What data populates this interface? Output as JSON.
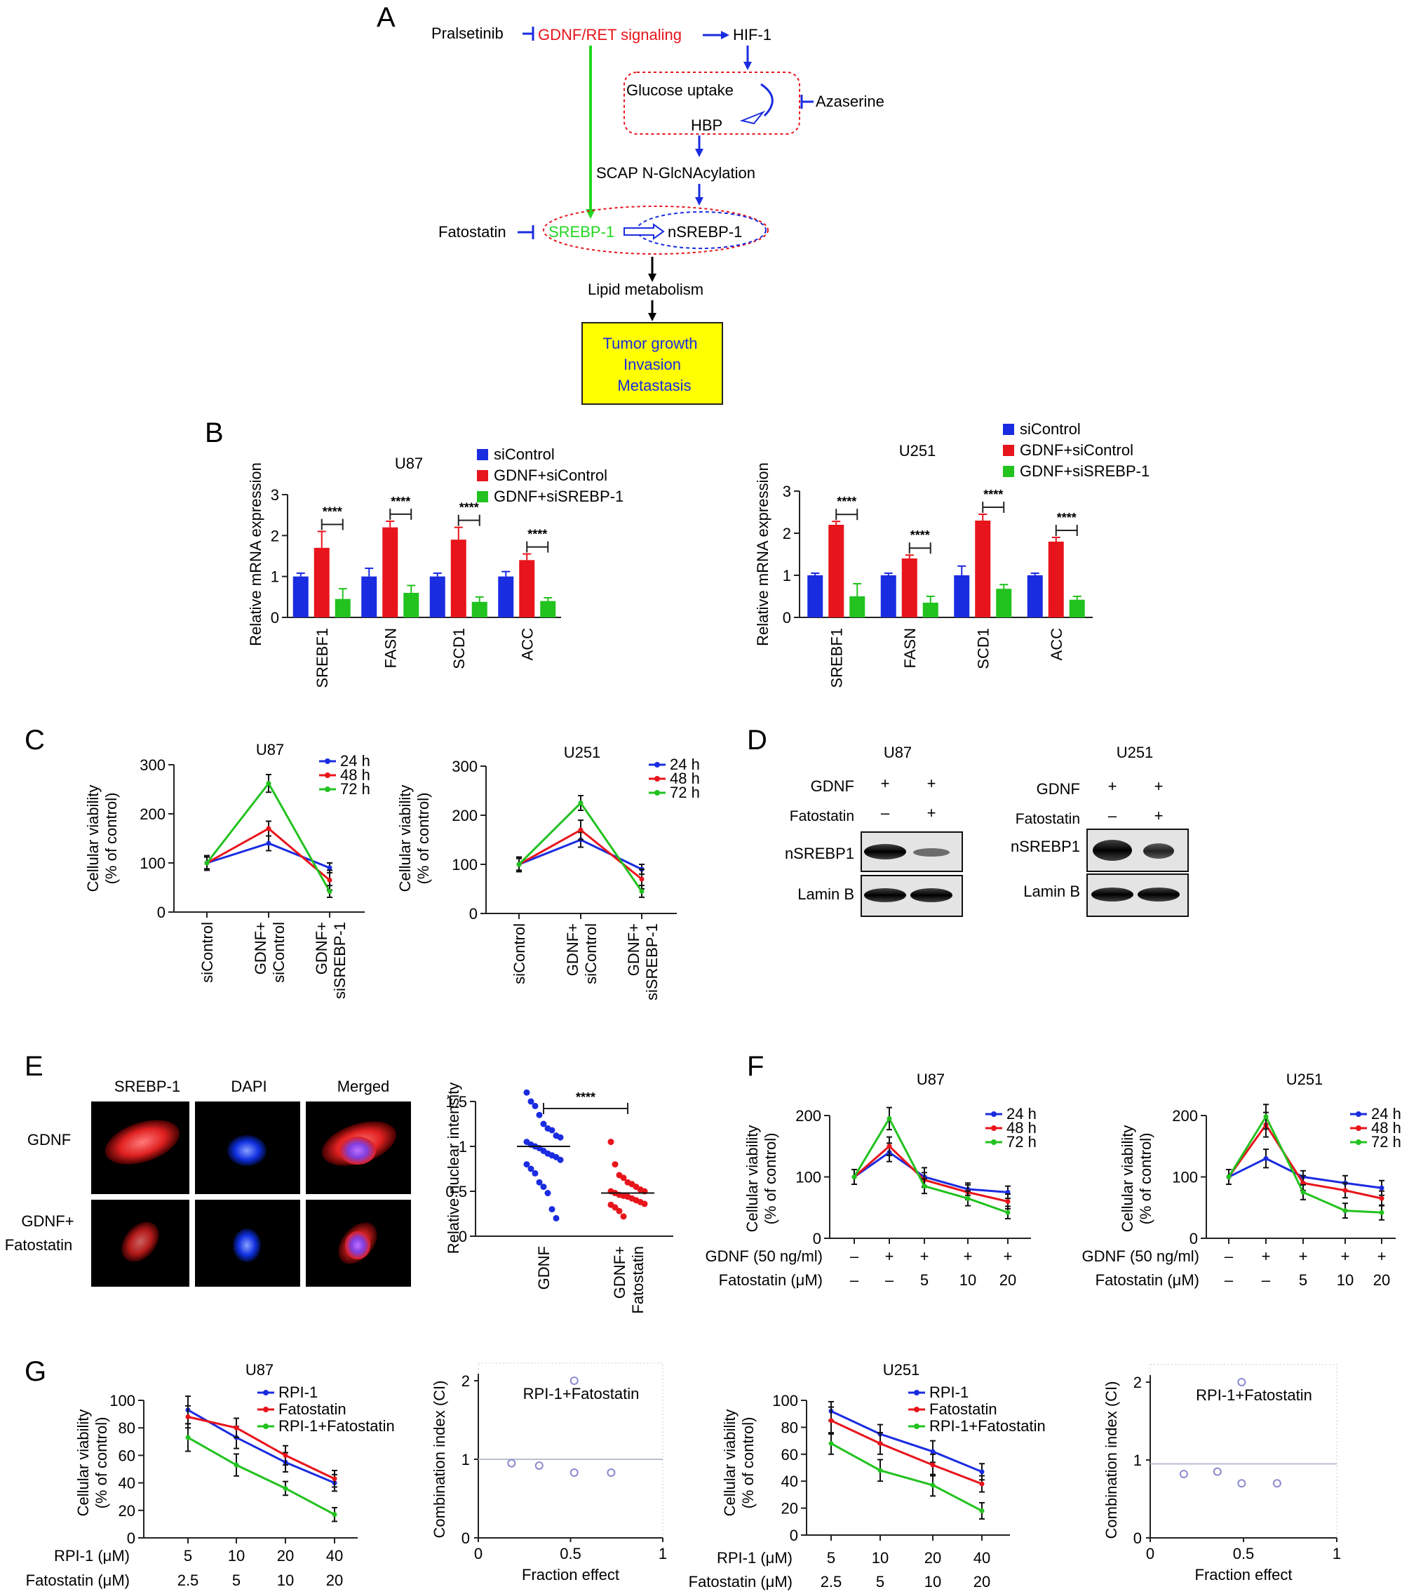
{
  "panel_labels": {
    "A": "A",
    "B": "B",
    "C": "C",
    "D": "D",
    "E": "E",
    "F": "F",
    "G": "G"
  },
  "diagram": {
    "pralsetinib": "Pralsetinib",
    "gdnf_ret": "GDNF/RET signaling",
    "hif1": "HIF-1",
    "glucose_uptake": "Glucose uptake",
    "azaserine": "Azaserine",
    "hbp": "HBP",
    "scap": "SCAP N-GlcNAcylation",
    "fatostatin": "Fatostatin",
    "srebp1": "SREBP-1",
    "nsrebp1": "nSREBP-1",
    "lipid": "Lipid metabolism",
    "outcome": [
      "Tumor growth",
      "Invasion",
      "Metastasis"
    ],
    "colors": {
      "red": "#e8141b",
      "green": "#22d622",
      "blue": "#1a2ce0",
      "box": "#ffff00"
    }
  },
  "panel_d": {
    "blocks": [
      {
        "cell": "U87",
        "rows": [
          {
            "label": "GDNF",
            "values": [
              "+",
              "+"
            ]
          },
          {
            "label": "Fatostatin",
            "values": [
              "–",
              "+"
            ]
          }
        ],
        "bands": [
          "nSREBP1",
          "Lamin B"
        ]
      },
      {
        "cell": "U251",
        "rows": [
          {
            "label": "GDNF",
            "values": [
              "+",
              "+"
            ]
          },
          {
            "label": "Fatostatin",
            "values": [
              "–",
              "+"
            ]
          }
        ],
        "bands": [
          "nSREBP1",
          "Lamin B"
        ]
      }
    ]
  },
  "panel_e": {
    "col_headers": [
      "SREBP-1",
      "DAPI",
      "Merged"
    ],
    "row_labels": [
      "GDNF",
      "GDNF+\nFatostatin"
    ]
  },
  "chart_data": [
    {
      "id": "B-U87",
      "type": "bar",
      "title": "U87",
      "ylabel": "Relative mRNA expression",
      "ylim": [
        0,
        3
      ],
      "yticks": [
        0,
        1,
        2,
        3
      ],
      "categories": [
        "SREBF1",
        "FASN",
        "SCD1",
        "ACC"
      ],
      "series": [
        {
          "name": "siControl",
          "color": "#1a2ce0",
          "values": [
            1.0,
            1.0,
            1.0,
            1.0
          ],
          "errors": [
            0.08,
            0.2,
            0.08,
            0.12
          ]
        },
        {
          "name": "GDNF+siControl",
          "color": "#e8141b",
          "values": [
            1.7,
            2.2,
            1.9,
            1.4
          ],
          "errors": [
            0.4,
            0.15,
            0.3,
            0.15
          ]
        },
        {
          "name": "GDNF+siSREBP-1",
          "color": "#22c21f",
          "values": [
            0.45,
            0.6,
            0.38,
            0.4
          ],
          "errors": [
            0.25,
            0.18,
            0.12,
            0.08
          ]
        }
      ],
      "significance": [
        "****",
        "****",
        "****",
        "****"
      ],
      "legend": "top-right"
    },
    {
      "id": "B-U251",
      "type": "bar",
      "title": "U251",
      "ylabel": "Relative mRNA expression",
      "ylim": [
        0,
        3
      ],
      "yticks": [
        0,
        1,
        2,
        3
      ],
      "categories": [
        "SREBF1",
        "FASN",
        "SCD1",
        "ACC"
      ],
      "series": [
        {
          "name": "siControl",
          "color": "#1a2ce0",
          "values": [
            1.0,
            1.0,
            1.0,
            1.0
          ],
          "errors": [
            0.05,
            0.05,
            0.22,
            0.05
          ]
        },
        {
          "name": "GDNF+siControl",
          "color": "#e8141b",
          "values": [
            2.2,
            1.4,
            2.3,
            1.8
          ],
          "errors": [
            0.08,
            0.08,
            0.15,
            0.1
          ]
        },
        {
          "name": "GDNF+siSREBP-1",
          "color": "#22c21f",
          "values": [
            0.5,
            0.35,
            0.68,
            0.42
          ],
          "errors": [
            0.3,
            0.15,
            0.1,
            0.08
          ]
        }
      ],
      "significance": [
        "****",
        "****",
        "****",
        "****"
      ],
      "legend": "top-right"
    },
    {
      "id": "C-U87",
      "type": "line",
      "title": "U87",
      "ylabel": "Cellular viability\n(% of control)",
      "ylim": [
        0,
        300
      ],
      "yticks": [
        0,
        100,
        200,
        300
      ],
      "categories": [
        "siControl",
        "GDNF+\nsiControl",
        "GDNF+\nsiSREBP-1"
      ],
      "series": [
        {
          "name": "24 h",
          "color": "#1a2ce0",
          "values": [
            100,
            140,
            90
          ],
          "errors": [
            15,
            15,
            10
          ]
        },
        {
          "name": "48 h",
          "color": "#e8141b",
          "values": [
            100,
            170,
            65
          ],
          "errors": [
            12,
            15,
            20
          ]
        },
        {
          "name": "72 h",
          "color": "#22c21f",
          "values": [
            100,
            262,
            42
          ],
          "errors": [
            12,
            18,
            12
          ]
        }
      ],
      "legend": "top-right"
    },
    {
      "id": "C-U251",
      "type": "line",
      "title": "U251",
      "ylabel": "Cellular viability\n(% of control)",
      "ylim": [
        0,
        300
      ],
      "yticks": [
        0,
        100,
        200,
        300
      ],
      "categories": [
        "siControl",
        "GDNF+\nsiControl",
        "GDNF+\nsiSREBP-1"
      ],
      "series": [
        {
          "name": "24 h",
          "color": "#1a2ce0",
          "values": [
            100,
            150,
            90
          ],
          "errors": [
            15,
            15,
            10
          ]
        },
        {
          "name": "48 h",
          "color": "#e8141b",
          "values": [
            100,
            170,
            70
          ],
          "errors": [
            12,
            20,
            20
          ]
        },
        {
          "name": "72 h",
          "color": "#22c21f",
          "values": [
            100,
            225,
            45
          ],
          "errors": [
            12,
            15,
            12
          ]
        }
      ],
      "legend": "top-right"
    },
    {
      "id": "E-scatter",
      "type": "scatter",
      "ylabel": "Relative nuclear intensity",
      "ylim": [
        0,
        1.5
      ],
      "yticks": [
        0,
        0.5,
        1.0,
        1.5
      ],
      "categories": [
        "GDNF",
        "GDNF+\nFatostatin"
      ],
      "series": [
        {
          "name": "GDNF",
          "color": "#1a2ce0",
          "values": [
            1.6,
            1.5,
            1.45,
            1.35,
            1.25,
            1.2,
            1.18,
            1.12,
            1.1,
            1.05,
            1.02,
            1.0,
            0.98,
            0.95,
            0.92,
            0.9,
            0.88,
            0.85,
            0.8,
            0.75,
            0.7,
            0.6,
            0.55,
            0.48,
            0.3,
            0.2
          ],
          "mean": 1.0
        },
        {
          "name": "GDNF+Fatostatin",
          "color": "#e8141b",
          "values": [
            1.05,
            0.8,
            0.68,
            0.65,
            0.6,
            0.58,
            0.55,
            0.52,
            0.5,
            0.5,
            0.48,
            0.46,
            0.45,
            0.44,
            0.42,
            0.4,
            0.38,
            0.36,
            0.35,
            0.32,
            0.28,
            0.22
          ],
          "mean": 0.48
        }
      ],
      "significance": "****"
    },
    {
      "id": "F-U87",
      "type": "line",
      "title": "U87",
      "ylabel": "Cellular viability\n(% of control)",
      "ylim": [
        0,
        200
      ],
      "yticks": [
        0,
        100,
        200
      ],
      "row_labels": [
        "GDNF (50 ng/ml)",
        "Fatostatin (μM)"
      ],
      "conditions": [
        [
          "–",
          "–"
        ],
        [
          "+",
          "–"
        ],
        [
          "+",
          "5"
        ],
        [
          "+",
          "10"
        ],
        [
          "+",
          "20"
        ]
      ],
      "series": [
        {
          "name": "24 h",
          "color": "#1a2ce0",
          "values": [
            100,
            140,
            100,
            80,
            75
          ],
          "errors": [
            12,
            15,
            15,
            10,
            10
          ]
        },
        {
          "name": "48 h",
          "color": "#e8141b",
          "values": [
            100,
            150,
            95,
            75,
            60
          ],
          "errors": [
            12,
            15,
            12,
            12,
            12
          ]
        },
        {
          "name": "72 h",
          "color": "#22c21f",
          "values": [
            100,
            195,
            85,
            65,
            42
          ],
          "errors": [
            12,
            18,
            12,
            12,
            10
          ]
        }
      ],
      "legend": "top-right"
    },
    {
      "id": "F-U251",
      "type": "line",
      "title": "U251",
      "ylabel": "Cellular viability\n(% of control)",
      "ylim": [
        0,
        200
      ],
      "yticks": [
        0,
        100,
        200
      ],
      "row_labels": [
        "GDNF (50 ng/ml)",
        "Fatostatin (μM)"
      ],
      "conditions": [
        [
          "–",
          "–"
        ],
        [
          "+",
          "–"
        ],
        [
          "+",
          "5"
        ],
        [
          "+",
          "10"
        ],
        [
          "+",
          "20"
        ]
      ],
      "series": [
        {
          "name": "24 h",
          "color": "#1a2ce0",
          "values": [
            100,
            130,
            100,
            90,
            82
          ],
          "errors": [
            12,
            15,
            10,
            12,
            12
          ]
        },
        {
          "name": "48 h",
          "color": "#e8141b",
          "values": [
            100,
            185,
            90,
            78,
            65
          ],
          "errors": [
            12,
            20,
            12,
            12,
            12
          ]
        },
        {
          "name": "72 h",
          "color": "#22c21f",
          "values": [
            100,
            198,
            75,
            45,
            42
          ],
          "errors": [
            12,
            20,
            12,
            12,
            12
          ]
        }
      ],
      "legend": "top-right"
    },
    {
      "id": "G-U87",
      "type": "line",
      "title": "U87",
      "ylabel": "Cellular viability\n(% of control)",
      "ylim": [
        0,
        100
      ],
      "yticks": [
        0,
        20,
        40,
        60,
        80,
        100
      ],
      "row_labels": [
        "RPI-1 (μM)",
        "Fatostatin (μM)"
      ],
      "conditions": [
        [
          "5",
          "2.5"
        ],
        [
          "10",
          "5"
        ],
        [
          "20",
          "10"
        ],
        [
          "40",
          "20"
        ]
      ],
      "series": [
        {
          "name": "RPI-1",
          "color": "#1a2ce0",
          "values": [
            93,
            73,
            55,
            40
          ],
          "errors": [
            10,
            8,
            7,
            6
          ]
        },
        {
          "name": "Fatostatin",
          "color": "#e8141b",
          "values": [
            88,
            80,
            60,
            43
          ],
          "errors": [
            8,
            7,
            7,
            6
          ]
        },
        {
          "name": "RPI-1+Fatostatin",
          "color": "#22c21f",
          "values": [
            73,
            53,
            36,
            17
          ],
          "errors": [
            10,
            8,
            5,
            5
          ]
        }
      ],
      "legend": "top-right"
    },
    {
      "id": "G-U87-CI",
      "type": "scatter",
      "title": "RPI-1+Fatostatin",
      "xlabel": "Fraction effect",
      "ylabel": "Combination index (CI)",
      "xlim": [
        0,
        1
      ],
      "ylim": [
        0,
        2
      ],
      "xticks": [
        "0",
        "0.5",
        "1"
      ],
      "yticks": [
        "0",
        "1",
        "2"
      ],
      "reference_line": 1,
      "x": [
        0.18,
        0.33,
        0.52,
        0.72,
        0.52
      ],
      "y": [
        0.95,
        0.92,
        0.83,
        0.83,
        2.0
      ],
      "color": "#8a8ad0"
    },
    {
      "id": "G-U251",
      "type": "line",
      "title": "U251",
      "ylabel": "Cellular viability\n(% of control)",
      "ylim": [
        0,
        100
      ],
      "yticks": [
        0,
        20,
        40,
        60,
        80,
        100
      ],
      "row_labels": [
        "RPI-1 (μM)",
        "Fatostatin (μM)"
      ],
      "conditions": [
        [
          "5",
          "2.5"
        ],
        [
          "10",
          "5"
        ],
        [
          "20",
          "10"
        ],
        [
          "40",
          "20"
        ]
      ],
      "series": [
        {
          "name": "RPI-1",
          "color": "#1a2ce0",
          "values": [
            92,
            75,
            62,
            47
          ],
          "errors": [
            7,
            7,
            8,
            6
          ]
        },
        {
          "name": "Fatostatin",
          "color": "#e8141b",
          "values": [
            85,
            68,
            52,
            38
          ],
          "errors": [
            10,
            8,
            8,
            6
          ]
        },
        {
          "name": "RPI-1+Fatostatin",
          "color": "#22c21f",
          "values": [
            68,
            48,
            37,
            18
          ],
          "errors": [
            8,
            8,
            8,
            6
          ]
        }
      ],
      "legend": "top-right"
    },
    {
      "id": "G-U251-CI",
      "type": "scatter",
      "title": "RPI-1+Fatostatin",
      "xlabel": "Fraction effect",
      "ylabel": "Combination index (CI)",
      "xlim": [
        0,
        1
      ],
      "ylim": [
        0,
        2
      ],
      "xticks": [
        "0",
        "0.5",
        "1"
      ],
      "yticks": [
        "0",
        "1",
        "2"
      ],
      "reference_line": 0.95,
      "x": [
        0.18,
        0.36,
        0.49,
        0.68,
        0.49
      ],
      "y": [
        0.82,
        0.85,
        0.7,
        0.7,
        2.0
      ],
      "color": "#8a8ad0"
    }
  ]
}
